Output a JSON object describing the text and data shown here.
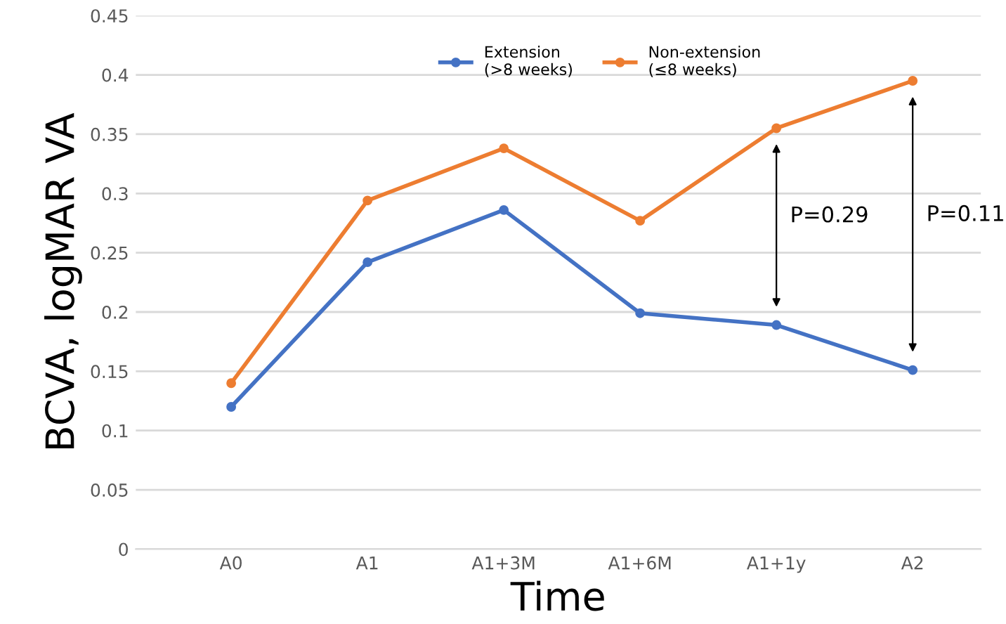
{
  "chart_data": {
    "type": "line",
    "xlabel": "Time",
    "ylabel": "BCVA, logMAR VA",
    "categories": [
      "A0",
      "A1",
      "A1+3M",
      "A1+6M",
      "A1+1y",
      "A2"
    ],
    "series": [
      {
        "name": "Extension\n(>8 weeks)",
        "color": "#4472c4",
        "values": [
          0.12,
          0.242,
          0.286,
          0.199,
          0.189,
          0.151
        ]
      },
      {
        "name": "Non-extension\n(≤8 weeks)",
        "color": "#ed7d31",
        "values": [
          0.14,
          0.294,
          0.338,
          0.277,
          0.355,
          0.395
        ]
      }
    ],
    "ylim": [
      0,
      0.45
    ],
    "yticks": [
      0,
      0.05,
      0.1,
      0.15,
      0.2,
      0.25,
      0.3,
      0.35,
      0.4,
      0.45
    ],
    "grid": "y",
    "legend": "top",
    "marker": "circle",
    "line_style": "solid",
    "annotations": [
      "P=0.29",
      "P=0.11"
    ]
  }
}
